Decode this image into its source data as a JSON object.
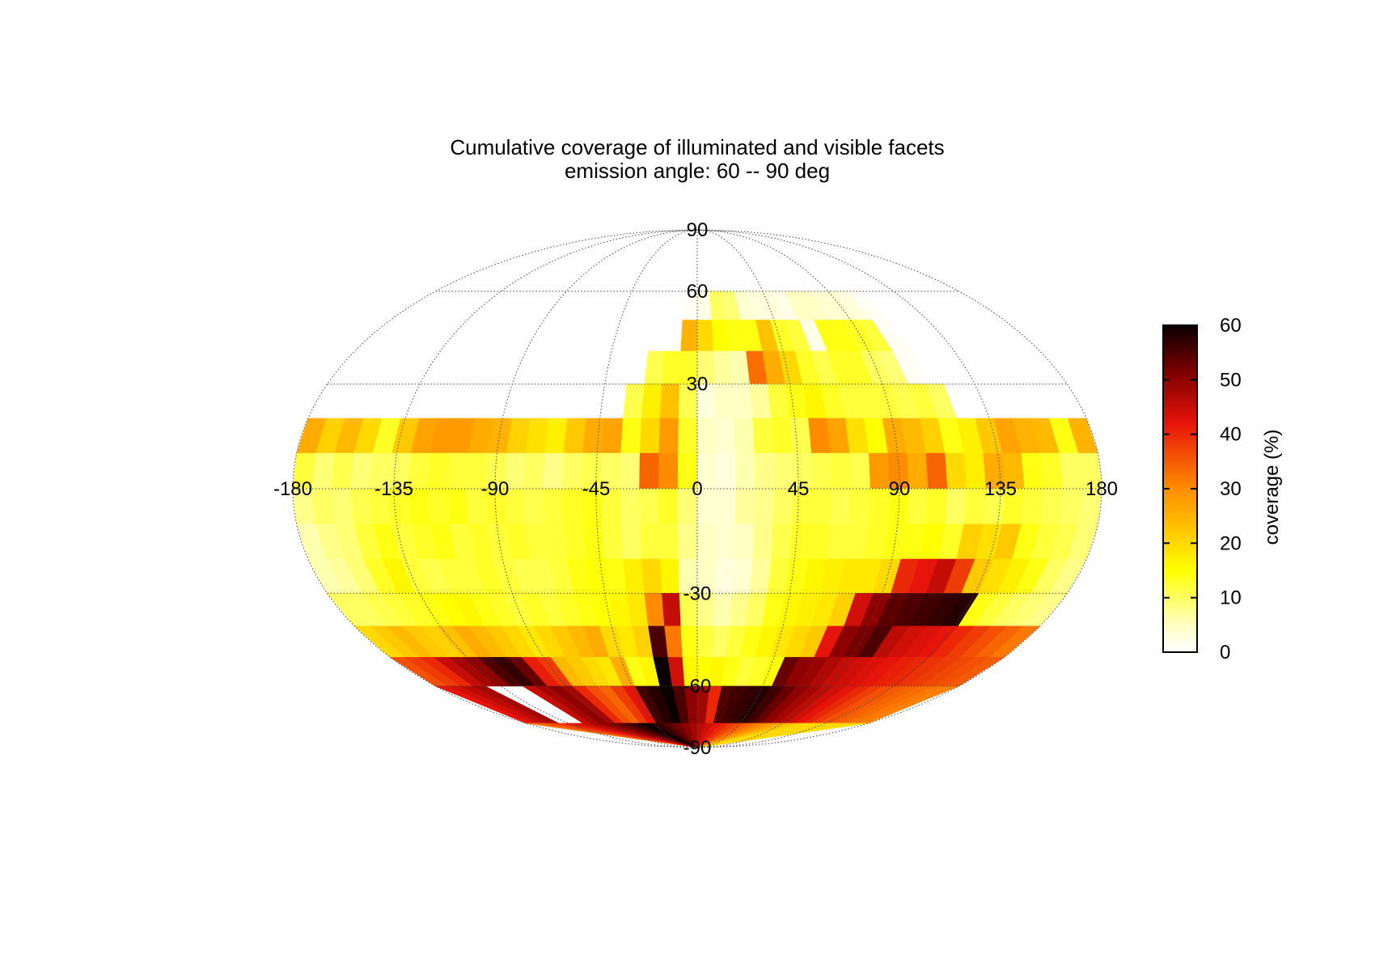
{
  "chart_data": {
    "type": "heatmap",
    "projection": "mollweide",
    "title": "Cumulative coverage of illuminated and visible facets",
    "subtitle": "emission angle: 60 -- 90 deg",
    "x_ticks": [
      "-180",
      "-135",
      "-90",
      "-45",
      "0",
      "45",
      "90",
      "135",
      "180"
    ],
    "x_tick_values": [
      -180,
      -135,
      -90,
      -45,
      0,
      45,
      90,
      135,
      180
    ],
    "y_ticks": [
      "90",
      "60",
      "30",
      "-30",
      "-60",
      "-90"
    ],
    "y_tick_values": [
      90,
      60,
      30,
      -30,
      -60,
      -90
    ],
    "xlim": [
      -180,
      180
    ],
    "ylim": [
      -90,
      90
    ],
    "grid": true,
    "colorbar": {
      "label": "coverage (%)",
      "ticks": [
        "0",
        "10",
        "20",
        "30",
        "40",
        "50",
        "60"
      ],
      "tick_values": [
        0,
        10,
        20,
        30,
        40,
        50,
        60
      ],
      "range": [
        0,
        60
      ],
      "colormap": "hot_r"
    },
    "bands": [
      {
        "lat": [
          60,
          90
        ],
        "values": [
          0,
          0,
          0,
          0,
          0,
          0,
          0,
          0,
          0,
          0,
          0,
          0,
          0,
          0,
          0,
          0,
          0,
          0,
          0,
          0,
          0,
          0,
          0,
          0,
          0,
          0,
          0,
          0,
          0,
          0,
          0,
          0,
          0,
          0,
          0,
          0,
          0,
          0,
          0,
          0,
          0,
          0
        ]
      },
      {
        "lat": [
          50,
          60
        ],
        "values": [
          0,
          0,
          0,
          0,
          0,
          0,
          0,
          0,
          0,
          0,
          0,
          0,
          0,
          0,
          0,
          0,
          0,
          0,
          0,
          0,
          1,
          2,
          10,
          9,
          4,
          3,
          3,
          2,
          5,
          5,
          4,
          4,
          3,
          1,
          0,
          0,
          0,
          0,
          0,
          0,
          0,
          0
        ]
      },
      {
        "lat": [
          40,
          50
        ],
        "values": [
          0,
          0,
          0,
          0,
          0,
          0,
          0,
          0,
          0,
          0,
          0,
          0,
          0,
          0,
          0,
          0,
          0,
          0,
          0,
          0,
          25,
          20,
          15,
          14,
          14,
          23,
          13,
          12,
          2,
          14,
          14,
          13,
          12,
          1,
          0,
          0,
          0,
          0,
          0,
          0,
          0,
          0
        ]
      },
      {
        "lat": [
          30,
          40
        ],
        "values": [
          0,
          0,
          0,
          0,
          0,
          0,
          0,
          0,
          0,
          0,
          0,
          0,
          0,
          0,
          0,
          0,
          0,
          0,
          11,
          13,
          13,
          9,
          7,
          6,
          33,
          26,
          20,
          13,
          11,
          13,
          13,
          10,
          9,
          1,
          0,
          0,
          0,
          0,
          0,
          0,
          0,
          0
        ]
      },
      {
        "lat": [
          20,
          30
        ],
        "values": [
          0,
          0,
          0,
          0,
          0,
          0,
          0,
          0,
          0,
          0,
          0,
          0,
          0,
          0,
          0,
          0,
          0,
          11,
          17,
          23,
          11,
          3,
          5,
          5,
          7,
          12,
          14,
          16,
          13,
          12,
          12,
          12,
          11,
          12,
          10,
          0,
          0,
          0,
          0,
          0,
          0,
          0
        ]
      },
      {
        "lat": [
          10,
          20
        ],
        "values": [
          26,
          21,
          24,
          20,
          13,
          22,
          27,
          28,
          28,
          26,
          25,
          21,
          19,
          17,
          22,
          26,
          27,
          14,
          20,
          28,
          13,
          5,
          4,
          6,
          12,
          13,
          11,
          30,
          27,
          19,
          15,
          26,
          24,
          21,
          14,
          17,
          22,
          27,
          25,
          24,
          14,
          25
        ]
      },
      {
        "lat": [
          0,
          10
        ],
        "values": [
          12,
          9,
          11,
          9,
          10,
          10,
          12,
          13,
          12,
          12,
          11,
          9,
          10,
          8,
          10,
          11,
          10,
          9,
          34,
          30,
          14,
          4,
          3,
          6,
          8,
          9,
          10,
          11,
          12,
          11,
          28,
          30,
          26,
          34,
          20,
          17,
          26,
          24,
          14,
          13,
          10,
          10
        ]
      },
      {
        "lat": [
          -10,
          0
        ],
        "values": [
          8,
          10,
          9,
          11,
          12,
          13,
          14,
          13,
          14,
          12,
          13,
          12,
          11,
          12,
          13,
          14,
          12,
          10,
          11,
          13,
          9,
          4,
          4,
          7,
          8,
          10,
          12,
          12,
          11,
          12,
          13,
          14,
          12,
          13,
          10,
          12,
          11,
          13,
          12,
          11,
          10,
          9
        ]
      },
      {
        "lat": [
          -20,
          -10
        ],
        "values": [
          6,
          8,
          9,
          12,
          14,
          12,
          13,
          14,
          12,
          13,
          12,
          13,
          12,
          12,
          13,
          14,
          12,
          10,
          12,
          12,
          8,
          5,
          4,
          5,
          8,
          11,
          13,
          13,
          12,
          12,
          13,
          14,
          14,
          15,
          13,
          21,
          19,
          22,
          14,
          12,
          11,
          9
        ]
      },
      {
        "lat": [
          -30,
          -20
        ],
        "values": [
          6,
          7,
          9,
          13,
          16,
          12,
          11,
          12,
          12,
          13,
          12,
          11,
          11,
          12,
          14,
          15,
          14,
          17,
          20,
          16,
          6,
          5,
          3,
          4,
          7,
          12,
          14,
          16,
          17,
          18,
          18,
          20,
          40,
          42,
          45,
          38,
          22,
          19,
          17,
          14,
          10,
          8
        ]
      },
      {
        "lat": [
          -40,
          -30
        ],
        "values": [
          10,
          10,
          11,
          12,
          13,
          14,
          15,
          16,
          14,
          13,
          12,
          13,
          12,
          13,
          14,
          15,
          16,
          18,
          30,
          45,
          11,
          8,
          6,
          8,
          10,
          14,
          16,
          17,
          18,
          21,
          44,
          50,
          54,
          55,
          56,
          57,
          58,
          14,
          12,
          10,
          9,
          8
        ]
      },
      {
        "lat": [
          -50,
          -40
        ],
        "values": [
          20,
          22,
          24,
          22,
          21,
          23,
          26,
          24,
          22,
          20,
          18,
          20,
          22,
          24,
          26,
          20,
          18,
          21,
          55,
          32,
          14,
          12,
          10,
          12,
          14,
          16,
          18,
          20,
          22,
          42,
          50,
          52,
          55,
          46,
          44,
          43,
          42,
          40,
          38,
          36,
          34,
          32
        ]
      },
      {
        "lat": [
          -60,
          -50
        ],
        "values": [
          36,
          38,
          40,
          45,
          48,
          50,
          55,
          57,
          53,
          41,
          38,
          24,
          22,
          20,
          18,
          26,
          14,
          16,
          60,
          44,
          16,
          15,
          16,
          14,
          12,
          13,
          15,
          53,
          50,
          49,
          47,
          45,
          44,
          43,
          42,
          41,
          40,
          39,
          38,
          37,
          36,
          35
        ]
      },
      {
        "lat": [
          -75,
          -60
        ],
        "values": [
          42,
          44,
          46,
          48,
          0,
          0,
          0,
          45,
          48,
          50,
          48,
          40,
          36,
          34,
          38,
          42,
          56,
          58,
          60,
          55,
          50,
          48,
          40,
          55,
          56,
          57,
          58,
          56,
          53,
          50,
          48,
          46,
          44,
          42,
          40,
          38,
          36,
          35,
          34,
          33,
          32,
          31
        ]
      },
      {
        "lat": [
          -90,
          -75
        ],
        "values": [
          32,
          34,
          36,
          38,
          40,
          42,
          44,
          46,
          48,
          50,
          52,
          54,
          56,
          58,
          60,
          58,
          56,
          54,
          52,
          50,
          48,
          46,
          44,
          42,
          40,
          38,
          36,
          34,
          32,
          30,
          28,
          26,
          24,
          22,
          20,
          20,
          20,
          20,
          20,
          20,
          20,
          20
        ]
      }
    ]
  }
}
